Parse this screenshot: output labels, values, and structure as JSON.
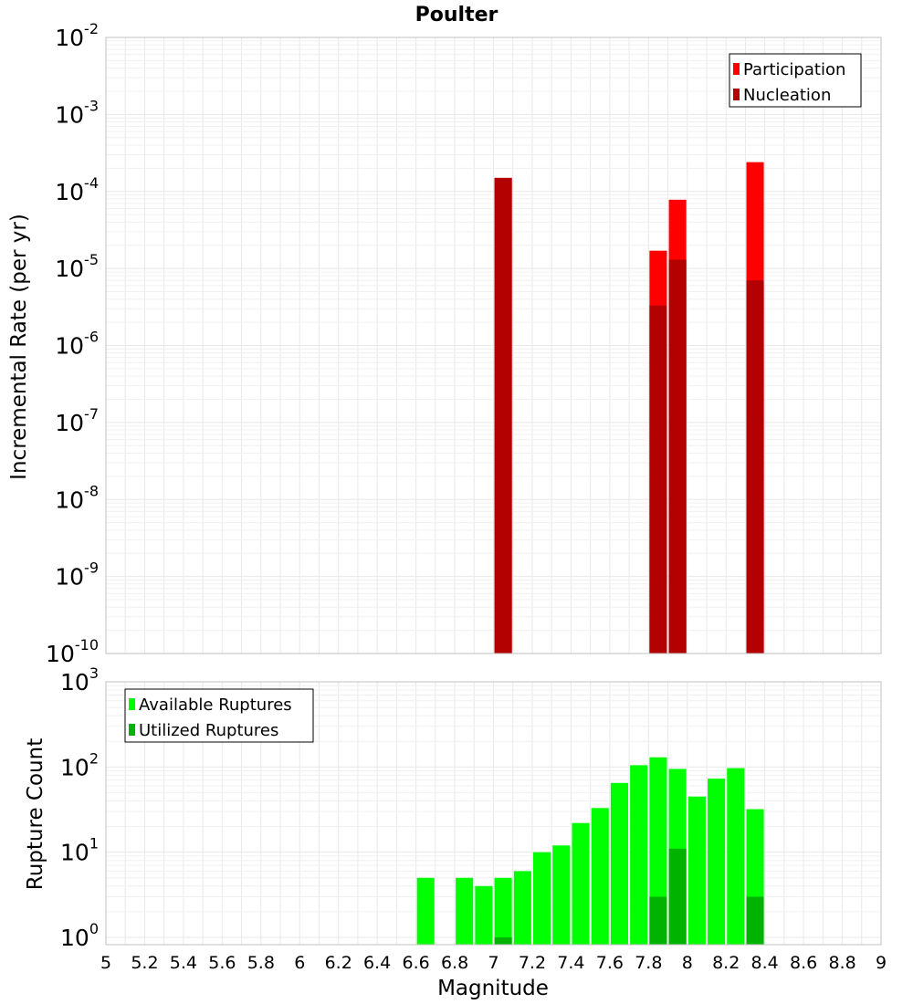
{
  "chart_data": [
    {
      "type": "bar",
      "title": "Poulter",
      "xlabel": "Magnitude",
      "ylabel": "Incremental Rate (per yr)",
      "yscale": "log",
      "ylim_exponent": [
        -10,
        -2
      ],
      "xlim": [
        5,
        9
      ],
      "bar_width": 0.09,
      "legend_position": "top-right",
      "series": [
        {
          "name": "Participation",
          "color": "#ff0000",
          "points": [
            {
              "x": 7.05,
              "y": 0.00015
            },
            {
              "x": 7.85,
              "y": 1.7e-05
            },
            {
              "x": 7.95,
              "y": 7.8e-05
            },
            {
              "x": 8.35,
              "y": 0.00024
            }
          ]
        },
        {
          "name": "Nucleation",
          "color": "#b30000",
          "points": [
            {
              "x": 7.05,
              "y": 0.00015
            },
            {
              "x": 7.85,
              "y": 3.3e-06
            },
            {
              "x": 7.95,
              "y": 1.3e-05
            },
            {
              "x": 8.35,
              "y": 7e-06
            }
          ]
        }
      ]
    },
    {
      "type": "bar",
      "xlabel": "Magnitude",
      "ylabel": "Rupture Count",
      "yscale": "log",
      "ylim_exponent": [
        0,
        3
      ],
      "xlim": [
        5,
        9
      ],
      "bar_width": 0.09,
      "legend_position": "top-left",
      "xticks": [
        "5",
        "5.2",
        "5.4",
        "5.6",
        "5.8",
        "6",
        "6.2",
        "6.4",
        "6.6",
        "6.8",
        "7",
        "7.2",
        "7.4",
        "7.6",
        "7.8",
        "8",
        "8.2",
        "8.4",
        "8.6",
        "8.8",
        "9"
      ],
      "series": [
        {
          "name": "Available Ruptures",
          "color": "#00ff00",
          "points": [
            {
              "x": 6.65,
              "y": 5
            },
            {
              "x": 6.85,
              "y": 5
            },
            {
              "x": 6.95,
              "y": 4
            },
            {
              "x": 7.05,
              "y": 5
            },
            {
              "x": 7.15,
              "y": 6
            },
            {
              "x": 7.25,
              "y": 10
            },
            {
              "x": 7.35,
              "y": 12
            },
            {
              "x": 7.45,
              "y": 22
            },
            {
              "x": 7.55,
              "y": 33
            },
            {
              "x": 7.65,
              "y": 65
            },
            {
              "x": 7.75,
              "y": 105
            },
            {
              "x": 7.85,
              "y": 130
            },
            {
              "x": 7.95,
              "y": 95
            },
            {
              "x": 8.05,
              "y": 45
            },
            {
              "x": 8.15,
              "y": 73
            },
            {
              "x": 8.25,
              "y": 97
            },
            {
              "x": 8.35,
              "y": 32
            }
          ]
        },
        {
          "name": "Utilized Ruptures",
          "color": "#00b300",
          "points": [
            {
              "x": 7.05,
              "y": 1
            },
            {
              "x": 7.85,
              "y": 3
            },
            {
              "x": 7.95,
              "y": 11
            },
            {
              "x": 8.35,
              "y": 3
            }
          ]
        }
      ]
    }
  ]
}
